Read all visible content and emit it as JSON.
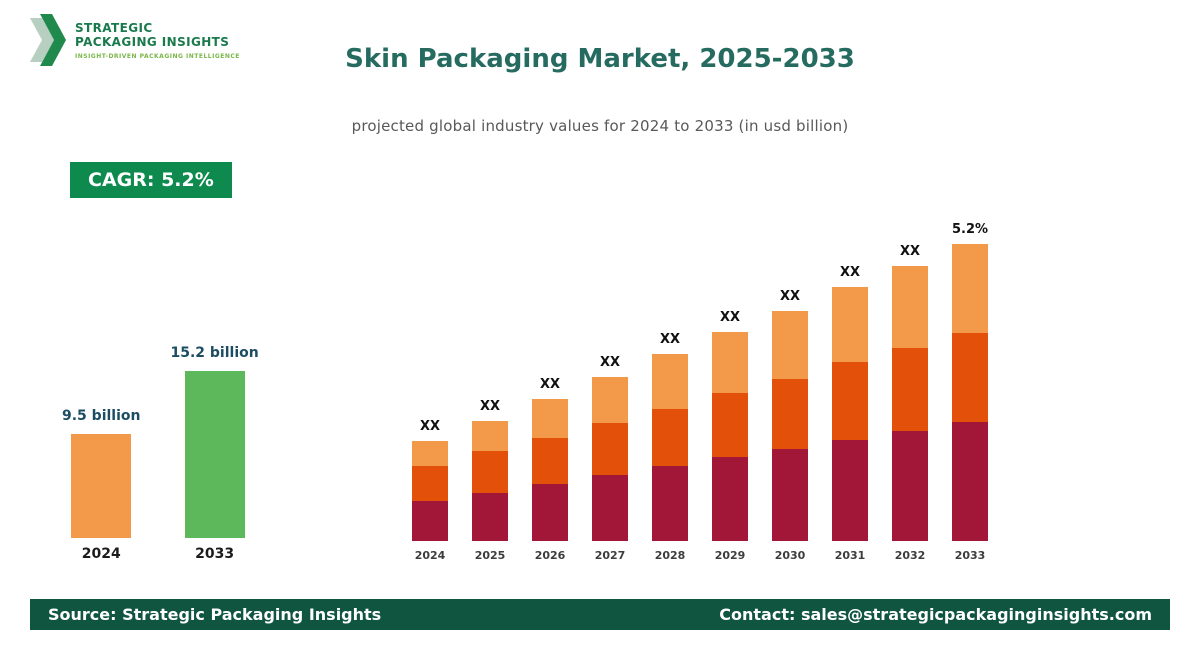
{
  "header": {
    "logo": {
      "line1": "STRATEGIC",
      "line2": "PACKAGING INSIGHTS",
      "tagline": "INSIGHT-DRIVEN PACKAGING INTELLIGENCE"
    },
    "title": "Skin Packaging Market, 2025-2033",
    "subtitle": "projected global industry values for 2024 to 2033 (in usd billion)"
  },
  "cagr_badge": "CAGR: 5.2%",
  "colors": {
    "brand_green_dark": "#0f5540",
    "badge_green": "#0e8a4f",
    "title_teal": "#266b5f",
    "orange_light": "#F2994A",
    "orange_red": "#E2500A",
    "crimson": "#A21638",
    "green_bar": "#5CB85A"
  },
  "chart_data": [
    {
      "type": "bar",
      "title": "2024 vs 2033 market size",
      "categories": [
        "2024",
        "2033"
      ],
      "values": [
        9.5,
        15.2
      ],
      "value_labels": [
        "9.5 billion",
        "15.2 billion"
      ],
      "bar_colors": [
        "#F2994A",
        "#5CB85A"
      ],
      "unit": "usd billion"
    },
    {
      "type": "bar",
      "subtype": "stacked",
      "title": "Skin Packaging Market 2024-2033 (values masked)",
      "categories": [
        "2024",
        "2025",
        "2026",
        "2027",
        "2028",
        "2029",
        "2030",
        "2031",
        "2032",
        "2033"
      ],
      "bar_labels": [
        "XX",
        "XX",
        "XX",
        "XX",
        "XX",
        "XX",
        "XX",
        "XX",
        "XX",
        "5.2%"
      ],
      "units": "relative height (actual figures shown as XX in source)",
      "series": [
        {
          "name": "bottom",
          "color": "#A21638",
          "values": [
            40,
            48,
            57,
            66,
            75,
            84,
            92,
            101,
            110,
            119
          ]
        },
        {
          "name": "middle",
          "color": "#E2500A",
          "values": [
            35,
            42,
            46,
            52,
            57,
            64,
            70,
            78,
            83,
            89
          ]
        },
        {
          "name": "top",
          "color": "#F2994A",
          "values": [
            25,
            30,
            39,
            46,
            55,
            61,
            68,
            75,
            82,
            89
          ]
        }
      ],
      "legend": "none",
      "grid": false
    }
  ],
  "footer": {
    "source": "Source: Strategic Packaging Insights",
    "contact": "Contact: sales@strategicpackaginginsights.com"
  }
}
